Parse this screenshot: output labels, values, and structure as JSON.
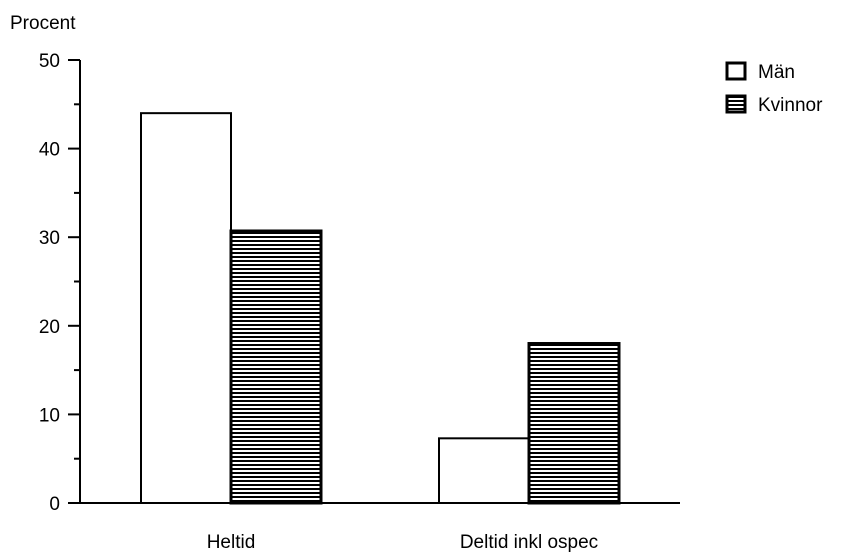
{
  "chart_data": {
    "type": "bar",
    "ylabel": "Procent",
    "xlabel": "",
    "categories": [
      "Heltid",
      "Deltid inkl ospec"
    ],
    "ylim": [
      0,
      50
    ],
    "yticks": [
      0,
      10,
      20,
      30,
      40,
      50
    ],
    "grid": false,
    "legend_position": "top-right",
    "series": [
      {
        "name": "Män",
        "values": [
          44,
          7.3
        ],
        "fill": "hollow"
      },
      {
        "name": "Kvinnor",
        "values": [
          30.7,
          18
        ],
        "fill": "horizontal-hatch"
      }
    ]
  }
}
